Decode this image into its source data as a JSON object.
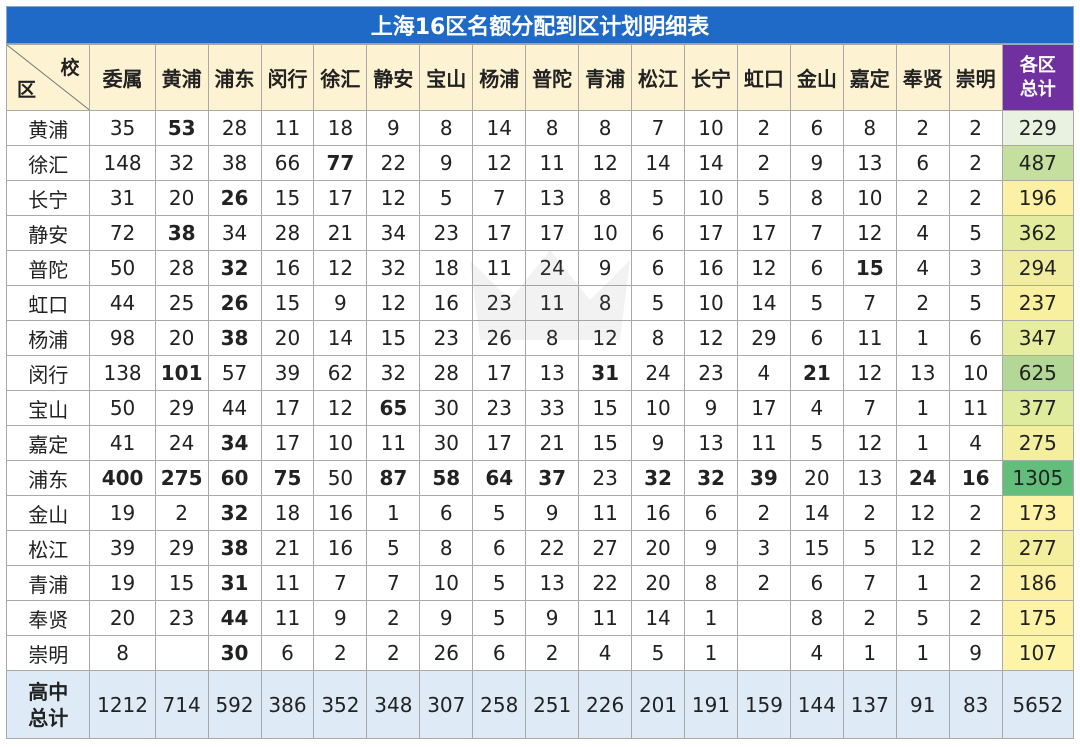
{
  "title": "上海16区名额分配到区计划明细表",
  "corner": {
    "top": "校",
    "bottom": "区"
  },
  "columns": [
    "委属",
    "黄浦",
    "浦东",
    "闵行",
    "徐汇",
    "静安",
    "宝山",
    "杨浦",
    "普陀",
    "青浦",
    "松江",
    "长宁",
    "虹口",
    "金山",
    "嘉定",
    "奉贤",
    "崇明"
  ],
  "total_header": [
    "各区",
    "总计"
  ],
  "rows": [
    {
      "district": "黄浦",
      "values": [
        "35",
        "53",
        "28",
        "11",
        "18",
        "9",
        "8",
        "14",
        "8",
        "8",
        "7",
        "10",
        "2",
        "6",
        "8",
        "2",
        "2"
      ],
      "total": "229",
      "total_color": "#e9f2e1",
      "highlights": {
        "1": "purple"
      }
    },
    {
      "district": "徐汇",
      "values": [
        "148",
        "32",
        "38",
        "66",
        "77",
        "22",
        "9",
        "12",
        "11",
        "12",
        "14",
        "14",
        "2",
        "9",
        "13",
        "6",
        "2"
      ],
      "total": "487",
      "total_color": "#c5df9f",
      "highlights": {
        "4": "purple"
      }
    },
    {
      "district": "长宁",
      "values": [
        "31",
        "20",
        "26",
        "15",
        "17",
        "12",
        "5",
        "7",
        "13",
        "8",
        "5",
        "10",
        "5",
        "8",
        "10",
        "2",
        "2"
      ],
      "total": "196",
      "total_color": "#fcf0a5",
      "highlights": {
        "2": "purple"
      }
    },
    {
      "district": "静安",
      "values": [
        "72",
        "38",
        "34",
        "28",
        "21",
        "34",
        "23",
        "17",
        "17",
        "10",
        "6",
        "17",
        "17",
        "7",
        "12",
        "4",
        "5"
      ],
      "total": "362",
      "total_color": "#e3ec9e",
      "highlights": {
        "1": "purple"
      }
    },
    {
      "district": "普陀",
      "values": [
        "50",
        "28",
        "32",
        "16",
        "12",
        "32",
        "18",
        "11",
        "24",
        "9",
        "6",
        "16",
        "12",
        "6",
        "15",
        "4",
        "3"
      ],
      "total": "294",
      "total_color": "#f1eda0",
      "highlights": {
        "2": "purple",
        "14": "red"
      }
    },
    {
      "district": "虹口",
      "values": [
        "44",
        "25",
        "26",
        "15",
        "9",
        "12",
        "16",
        "23",
        "11",
        "8",
        "5",
        "10",
        "14",
        "5",
        "7",
        "2",
        "5"
      ],
      "total": "237",
      "total_color": "#f8ef9f",
      "highlights": {
        "2": "purple"
      }
    },
    {
      "district": "杨浦",
      "values": [
        "98",
        "20",
        "38",
        "20",
        "14",
        "15",
        "23",
        "26",
        "8",
        "12",
        "8",
        "12",
        "29",
        "6",
        "11",
        "1",
        "6"
      ],
      "total": "347",
      "total_color": "#e7ed9f",
      "highlights": {
        "2": "purple"
      }
    },
    {
      "district": "闵行",
      "values": [
        "138",
        "101",
        "57",
        "39",
        "62",
        "32",
        "28",
        "17",
        "13",
        "31",
        "24",
        "23",
        "4",
        "21",
        "12",
        "13",
        "10"
      ],
      "total": "625",
      "total_color": "#b2d797",
      "highlights": {
        "1": "purple",
        "9": "red",
        "13": "red"
      }
    },
    {
      "district": "宝山",
      "values": [
        "50",
        "29",
        "44",
        "17",
        "12",
        "65",
        "30",
        "23",
        "33",
        "15",
        "10",
        "9",
        "17",
        "4",
        "7",
        "1",
        "11"
      ],
      "total": "377",
      "total_color": "#dfeb9d",
      "highlights": {
        "5": "purple"
      }
    },
    {
      "district": "嘉定",
      "values": [
        "41",
        "24",
        "34",
        "17",
        "10",
        "11",
        "30",
        "17",
        "21",
        "15",
        "9",
        "13",
        "11",
        "5",
        "12",
        "1",
        "4"
      ],
      "total": "275",
      "total_color": "#f4ee9f",
      "highlights": {
        "2": "purple"
      }
    },
    {
      "district": "浦东",
      "values": [
        "400",
        "275",
        "60",
        "75",
        "50",
        "87",
        "58",
        "64",
        "37",
        "23",
        "32",
        "32",
        "39",
        "20",
        "13",
        "24",
        "16"
      ],
      "total": "1305",
      "total_color": "#63be7b",
      "highlights": {
        "0": "red",
        "1": "purple",
        "2": "red",
        "3": "red",
        "5": "red",
        "6": "red",
        "7": "red",
        "8": "red",
        "10": "red",
        "11": "red",
        "12": "red",
        "15": "red",
        "16": "red"
      }
    },
    {
      "district": "金山",
      "values": [
        "19",
        "2",
        "32",
        "18",
        "16",
        "1",
        "6",
        "5",
        "9",
        "11",
        "16",
        "6",
        "2",
        "14",
        "2",
        "12",
        "2"
      ],
      "total": "173",
      "total_color": "#fdf2a6",
      "highlights": {
        "2": "purple"
      }
    },
    {
      "district": "松江",
      "values": [
        "39",
        "29",
        "38",
        "21",
        "16",
        "5",
        "8",
        "6",
        "22",
        "27",
        "20",
        "9",
        "3",
        "15",
        "5",
        "12",
        "2"
      ],
      "total": "277",
      "total_color": "#f4ee9f",
      "highlights": {
        "2": "purple"
      }
    },
    {
      "district": "青浦",
      "values": [
        "19",
        "15",
        "31",
        "11",
        "7",
        "7",
        "10",
        "5",
        "13",
        "22",
        "20",
        "8",
        "2",
        "6",
        "7",
        "1",
        "2"
      ],
      "total": "186",
      "total_color": "#fdf1a6",
      "highlights": {
        "2": "purple"
      }
    },
    {
      "district": "奉贤",
      "values": [
        "20",
        "23",
        "44",
        "11",
        "9",
        "2",
        "9",
        "5",
        "9",
        "11",
        "14",
        "1",
        "",
        "8",
        "2",
        "5",
        "2"
      ],
      "total": "175",
      "total_color": "#fdf2a6",
      "highlights": {
        "2": "purple"
      }
    },
    {
      "district": "崇明",
      "values": [
        "8",
        "",
        "30",
        "6",
        "2",
        "2",
        "26",
        "6",
        "2",
        "4",
        "5",
        "1",
        "",
        "4",
        "1",
        "1",
        "9"
      ],
      "total": "107",
      "total_color": "#fef4a9",
      "highlights": {
        "2": "purple"
      }
    }
  ],
  "footer": {
    "label": [
      "高中",
      "总计"
    ],
    "values": [
      "1212",
      "714",
      "592",
      "386",
      "352",
      "348",
      "307",
      "258",
      "251",
      "226",
      "201",
      "191",
      "159",
      "144",
      "137",
      "91",
      "83"
    ],
    "grand_total": "5652"
  },
  "colors": {
    "title_bg": "#1f69c7",
    "header_bg": "#fdf3d2",
    "total_header_bg": "#7030a0",
    "footer_bg": "#deebf7",
    "highlight_purple": "#7030a0",
    "highlight_red": "#c00000"
  }
}
